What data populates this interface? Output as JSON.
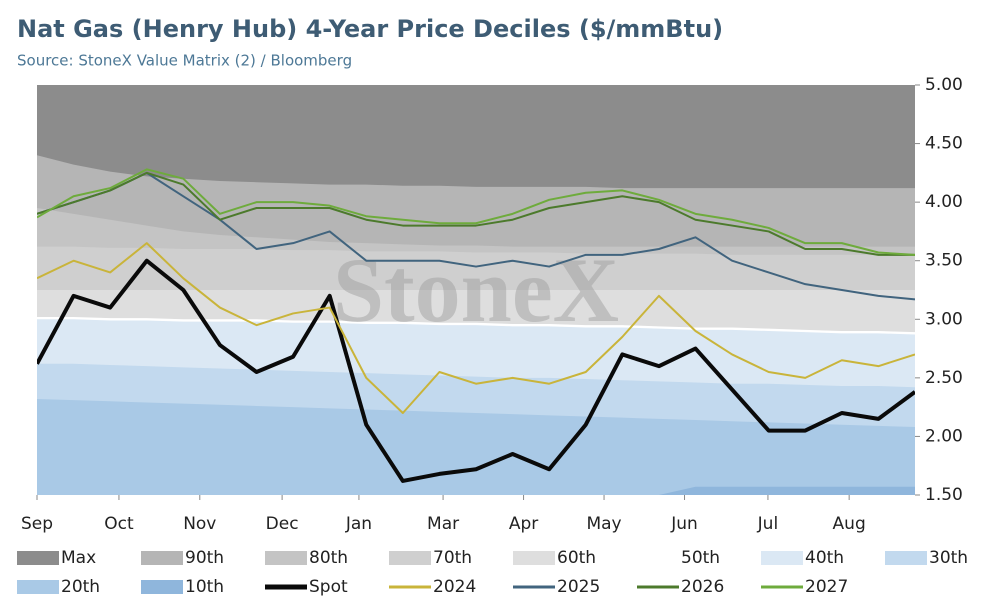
{
  "chart_data": {
    "type": "line",
    "title": "Nat Gas (Henry Hub) 4-Year Price Deciles ($/mmBtu)",
    "subtitle": "Source: StoneX Value Matrix (2) / Bloomberg",
    "watermark": "StoneX",
    "x": [
      0,
      1,
      2,
      3,
      4,
      5,
      6,
      7,
      8,
      9,
      10,
      11,
      12,
      13,
      14,
      15,
      16,
      17,
      18,
      19,
      20,
      21,
      22,
      23,
      24
    ],
    "xlim": [
      0,
      24
    ],
    "xticks": [
      {
        "value": 0,
        "label": "Sep"
      },
      {
        "value": 2.24,
        "label": "Oct"
      },
      {
        "value": 4.45,
        "label": "Nov"
      },
      {
        "value": 6.7,
        "label": "Dec"
      },
      {
        "value": 8.8,
        "label": "Jan"
      },
      {
        "value": 11.1,
        "label": "Mar"
      },
      {
        "value": 13.3,
        "label": "Apr"
      },
      {
        "value": 15.5,
        "label": "May"
      },
      {
        "value": 17.7,
        "label": "Jun"
      },
      {
        "value": 19.98,
        "label": "Jul"
      },
      {
        "value": 22.2,
        "label": "Aug"
      }
    ],
    "ylim": [
      1.5,
      5.0
    ],
    "yticks": [
      {
        "value": 1.5,
        "label": "1.50"
      },
      {
        "value": 2.0,
        "label": "2.00"
      },
      {
        "value": 2.5,
        "label": "2.50"
      },
      {
        "value": 3.0,
        "label": "3.00"
      },
      {
        "value": 3.5,
        "label": "3.50"
      },
      {
        "value": 4.0,
        "label": "4.00"
      },
      {
        "value": 4.5,
        "label": "4.50"
      },
      {
        "value": 5.0,
        "label": "5.00"
      }
    ],
    "y_axis_side": "right",
    "series": [
      {
        "name": "Max",
        "color": "#8c8c8c",
        "fill": true,
        "values": [
          5.0,
          5.0,
          5.0,
          5.0,
          5.0,
          5.0,
          5.0,
          5.0,
          5.0,
          5.0,
          5.0,
          5.0,
          5.0,
          5.0,
          5.0,
          5.0,
          5.0,
          5.0,
          5.0,
          5.0,
          5.0,
          5.0,
          5.0,
          5.0,
          5.0
        ]
      },
      {
        "name": "90th",
        "color": "#b5b5b5",
        "fill": true,
        "values": [
          4.4,
          4.32,
          4.26,
          4.22,
          4.2,
          4.18,
          4.17,
          4.16,
          4.15,
          4.15,
          4.14,
          4.14,
          4.13,
          4.13,
          4.13,
          4.13,
          4.12,
          4.12,
          4.12,
          4.12,
          4.12,
          4.12,
          4.12,
          4.12,
          4.12
        ]
      },
      {
        "name": "80th",
        "color": "#c4c4c4",
        "fill": true,
        "values": [
          3.95,
          3.9,
          3.85,
          3.8,
          3.75,
          3.72,
          3.7,
          3.68,
          3.66,
          3.65,
          3.64,
          3.63,
          3.63,
          3.62,
          3.62,
          3.62,
          3.62,
          3.62,
          3.62,
          3.62,
          3.62,
          3.62,
          3.62,
          3.62,
          3.62
        ]
      },
      {
        "name": "70th",
        "color": "#cfcfcf",
        "fill": true,
        "values": [
          3.62,
          3.62,
          3.61,
          3.61,
          3.6,
          3.6,
          3.6,
          3.59,
          3.59,
          3.58,
          3.58,
          3.58,
          3.57,
          3.57,
          3.57,
          3.56,
          3.56,
          3.56,
          3.56,
          3.55,
          3.55,
          3.55,
          3.55,
          3.55,
          3.55
        ]
      },
      {
        "name": "60th",
        "color": "#dedede",
        "fill": true,
        "values": [
          3.25,
          3.25,
          3.25,
          3.25,
          3.25,
          3.25,
          3.25,
          3.25,
          3.25,
          3.25,
          3.25,
          3.25,
          3.25,
          3.25,
          3.25,
          3.25,
          3.25,
          3.25,
          3.25,
          3.25,
          3.25,
          3.25,
          3.25,
          3.25,
          3.25
        ]
      },
      {
        "name": "50th",
        "color": "#ffffff",
        "fill": true,
        "values": [
          3.02,
          3.02,
          3.01,
          3.01,
          3.0,
          3.0,
          3.0,
          2.99,
          2.99,
          2.98,
          2.98,
          2.97,
          2.97,
          2.96,
          2.96,
          2.95,
          2.95,
          2.94,
          2.93,
          2.93,
          2.92,
          2.91,
          2.9,
          2.9,
          2.89
        ]
      },
      {
        "name": "40th",
        "color": "#dbe8f4",
        "fill": true,
        "values": [
          3.0,
          3.0,
          2.99,
          2.99,
          2.98,
          2.98,
          2.98,
          2.97,
          2.97,
          2.96,
          2.96,
          2.95,
          2.95,
          2.94,
          2.94,
          2.93,
          2.93,
          2.92,
          2.91,
          2.91,
          2.9,
          2.89,
          2.88,
          2.88,
          2.87
        ]
      },
      {
        "name": "30th",
        "color": "#c2d9ee",
        "fill": true,
        "values": [
          2.62,
          2.62,
          2.61,
          2.6,
          2.59,
          2.58,
          2.57,
          2.56,
          2.55,
          2.54,
          2.53,
          2.52,
          2.51,
          2.5,
          2.5,
          2.49,
          2.48,
          2.47,
          2.46,
          2.45,
          2.45,
          2.44,
          2.43,
          2.43,
          2.42
        ]
      },
      {
        "name": "20th",
        "color": "#a9c9e6",
        "fill": true,
        "values": [
          2.32,
          2.31,
          2.3,
          2.29,
          2.28,
          2.27,
          2.26,
          2.25,
          2.24,
          2.23,
          2.22,
          2.21,
          2.2,
          2.19,
          2.18,
          2.17,
          2.16,
          2.15,
          2.14,
          2.13,
          2.12,
          2.11,
          2.1,
          2.09,
          2.08
        ]
      },
      {
        "name": "10th",
        "color": "#8fb6dc",
        "fill": true,
        "values": [
          1.5,
          1.5,
          1.5,
          1.5,
          1.5,
          1.5,
          1.5,
          1.5,
          1.5,
          1.5,
          1.5,
          1.5,
          1.5,
          1.5,
          1.5,
          1.5,
          1.5,
          1.5,
          1.57,
          1.57,
          1.57,
          1.57,
          1.57,
          1.57,
          1.57
        ]
      },
      {
        "name": "Spot",
        "color": "#0a0a0a",
        "width": 4,
        "values": [
          2.62,
          3.2,
          3.1,
          3.5,
          3.25,
          2.78,
          2.55,
          2.68,
          3.2,
          2.1,
          1.62,
          1.68,
          1.72,
          1.85,
          1.72,
          2.1,
          2.7,
          2.6,
          2.75,
          2.4,
          2.05,
          2.05,
          2.2,
          2.15,
          2.38
        ]
      },
      {
        "name": "2024",
        "color": "#c9b43a",
        "width": 2,
        "values": [
          3.35,
          3.5,
          3.4,
          3.65,
          3.35,
          3.1,
          2.95,
          3.05,
          3.1,
          2.5,
          2.2,
          2.55,
          2.45,
          2.5,
          2.45,
          2.55,
          2.85,
          3.2,
          2.9,
          2.7,
          2.55,
          2.5,
          2.65,
          2.6,
          2.7
        ]
      },
      {
        "name": "2025",
        "color": "#41647e",
        "width": 2,
        "values": [
          3.9,
          4.0,
          4.1,
          4.25,
          4.05,
          3.85,
          3.6,
          3.65,
          3.75,
          3.5,
          3.5,
          3.5,
          3.45,
          3.5,
          3.45,
          3.55,
          3.55,
          3.6,
          3.7,
          3.5,
          3.4,
          3.3,
          3.25,
          3.2,
          3.17
        ]
      },
      {
        "name": "2026",
        "color": "#4c7a2c",
        "width": 2,
        "values": [
          3.9,
          4.0,
          4.1,
          4.25,
          4.15,
          3.85,
          3.95,
          3.95,
          3.95,
          3.85,
          3.8,
          3.8,
          3.8,
          3.85,
          3.95,
          4.0,
          4.05,
          4.0,
          3.85,
          3.8,
          3.75,
          3.6,
          3.6,
          3.55,
          3.55
        ]
      },
      {
        "name": "2027",
        "color": "#6eab3c",
        "width": 2,
        "values": [
          3.87,
          4.05,
          4.12,
          4.28,
          4.2,
          3.9,
          4.0,
          4.0,
          3.97,
          3.88,
          3.85,
          3.82,
          3.82,
          3.9,
          4.02,
          4.08,
          4.1,
          4.02,
          3.9,
          3.85,
          3.78,
          3.65,
          3.65,
          3.57,
          3.55
        ]
      }
    ]
  }
}
